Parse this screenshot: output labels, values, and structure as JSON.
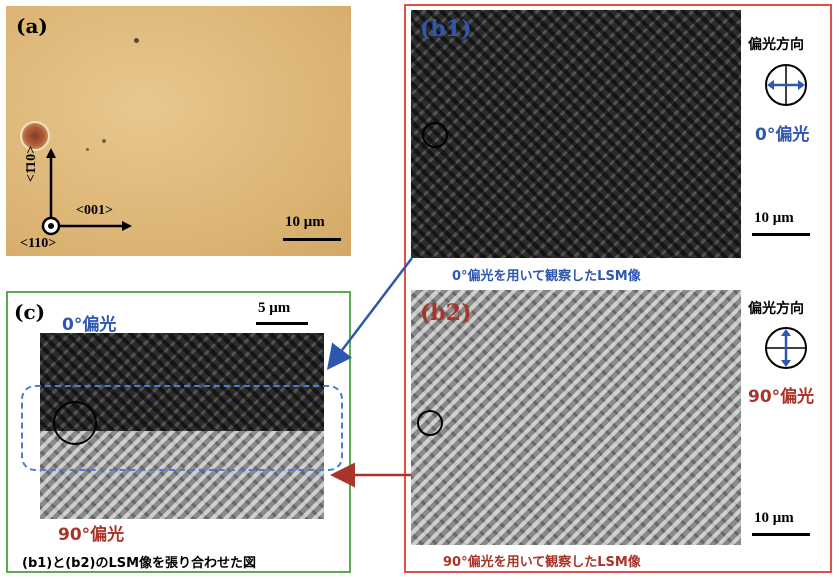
{
  "panel_a": {
    "label": "(a)",
    "dir_vertical": "<1̄10>",
    "dir_horizontal": "<001>",
    "dir_out": "<110>",
    "scale": "10 μm"
  },
  "panel_b1": {
    "label": "(b1)",
    "pol_dir_title": "偏光方向",
    "pol_angle": "0°偏光",
    "scale": "10 μm",
    "caption": "0°偏光を用いて観察したLSM像"
  },
  "panel_b2": {
    "label": "(b2)",
    "pol_dir_title": "偏光方向",
    "pol_angle": "90°偏光",
    "scale": "10 μm",
    "caption": "90°偏光を用いて観察したLSM像"
  },
  "panel_c": {
    "label": "(c)",
    "top_label": "0°偏光",
    "bottom_label": "90°偏光",
    "scale": "5 μm",
    "caption": "(b1)と(b2)のLSM像を張り合わせた図"
  },
  "colors": {
    "blue": "#2e57b0",
    "red": "#a8342a",
    "green_frame": "#5aab4f",
    "red_frame": "#d9534a"
  }
}
